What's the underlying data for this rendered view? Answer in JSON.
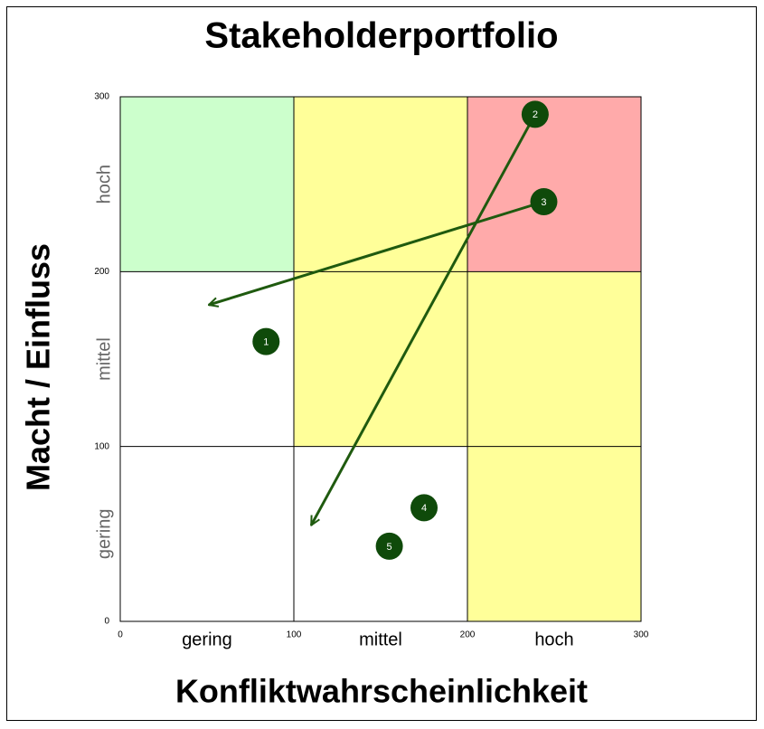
{
  "chart_data": {
    "type": "scatter",
    "title": "Stakeholderportfolio",
    "x_label": "Konfliktwahrscheinlichkeit",
    "y_label": "Macht / Einfluss",
    "xlim": [
      0,
      300
    ],
    "ylim": [
      0,
      300
    ],
    "xticks": [
      0,
      100,
      200,
      300
    ],
    "yticks": [
      0,
      100,
      200,
      300
    ],
    "x_categories": [
      "gering",
      "mittel",
      "hoch"
    ],
    "y_categories": [
      "gering",
      "mittel",
      "hoch"
    ],
    "zone_colors": [
      [
        "#ccffcc",
        "#ffff99",
        "#ffaaaa"
      ],
      [
        "#ffffff",
        "#ffff99",
        "#ffff99"
      ],
      [
        "#ffffff",
        "#ffffff",
        "#ffff99"
      ]
    ],
    "color": "#0f4a0a",
    "points": [
      {
        "label": "1",
        "x": 84,
        "y": 160
      },
      {
        "label": "2",
        "x": 239,
        "y": 290
      },
      {
        "label": "3",
        "x": 244,
        "y": 240
      },
      {
        "label": "4",
        "x": 175,
        "y": 65
      },
      {
        "label": "5",
        "x": 155,
        "y": 43
      }
    ],
    "arrows": [
      {
        "from": [
          239,
          290
        ],
        "to": [
          110,
          55
        ]
      },
      {
        "from": [
          244,
          240
        ],
        "to": [
          51,
          181
        ]
      }
    ]
  }
}
